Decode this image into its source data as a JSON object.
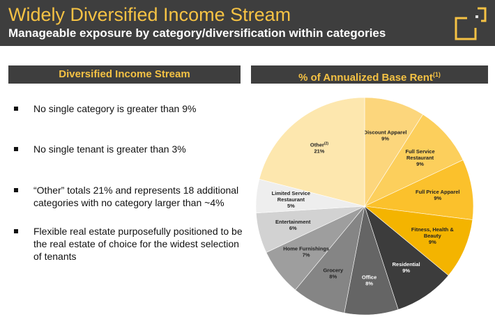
{
  "header": {
    "title": "Widely Diversified Income Stream",
    "subtitle": "Manageable exposure by category/diversification within categories"
  },
  "left": {
    "heading": "Diversified Income Stream",
    "bullets": [
      "No single category is greater than 9%",
      "No single tenant is greater than 3%",
      "“Other” totals 21% and represents 18 additional categories with no category larger than ~4%",
      "Flexible real estate purposefully positioned to be the real estate of choice for the widest selection of tenants"
    ]
  },
  "chart_data": {
    "type": "pie",
    "title": "% of Annualized Base Rent",
    "title_sup": "(1)",
    "start": "12 o'clock, clockwise",
    "slices": [
      {
        "label": "Discount Apparel",
        "value": 9,
        "color": "#fcd67c"
      },
      {
        "label": "Full Service Restaurant",
        "value": 9,
        "color": "#fccf5c"
      },
      {
        "label": "Full Price Apparel",
        "value": 9,
        "color": "#fbc12c"
      },
      {
        "label": "Fitness, Health & Beauty",
        "value": 9,
        "color": "#f4b400"
      },
      {
        "label": "Residential",
        "value": 9,
        "color": "#3c3c3c"
      },
      {
        "label": "Office",
        "value": 8,
        "color": "#656565"
      },
      {
        "label": "Grocery",
        "value": 8,
        "color": "#858585"
      },
      {
        "label": "Home Furnishings",
        "value": 7,
        "color": "#9e9e9e"
      },
      {
        "label": "Entertainment",
        "value": 6,
        "color": "#d2d2d2"
      },
      {
        "label": "Limited Service Restaurant",
        "value": 5,
        "color": "#eeeeee"
      },
      {
        "label": "Other",
        "label_sup": "(2)",
        "value": 21,
        "color": "#fde7ae"
      }
    ]
  }
}
